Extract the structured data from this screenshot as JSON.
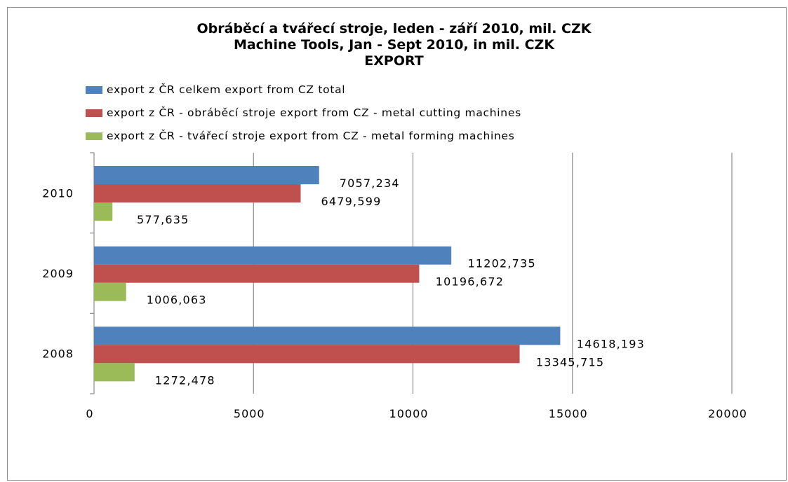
{
  "chart_data": {
    "type": "bar",
    "orientation": "horizontal",
    "title": [
      "Obráběcí a tvářecí stroje, leden - září 2010, mil. CZK",
      "Machine Tools, Jan - Sept 2010, in mil. CZK",
      "EXPORT"
    ],
    "categories": [
      "2010",
      "2009",
      "2008"
    ],
    "series": [
      {
        "name": "export z ČR celkem export from CZ total",
        "color": "#4f81bd",
        "values": [
          7057.234,
          11202.735,
          14618.193
        ],
        "labels": [
          "7057,234",
          "11202,735",
          "14618,193"
        ]
      },
      {
        "name": "export z ČR - obráběcí stroje export from CZ - metal cutting machines",
        "color": "#c0504d",
        "values": [
          6479.599,
          10196.672,
          13345.715
        ],
        "labels": [
          "6479,599",
          "10196,672",
          "13345,715"
        ]
      },
      {
        "name": "export z ČR - tvářecí stroje export from CZ - metal forming machines",
        "color": "#9bbb59",
        "values": [
          577.635,
          1006.063,
          1272.478
        ],
        "labels": [
          "577,635",
          "1006,063",
          "1272,478"
        ]
      }
    ],
    "x_ticks": [
      "0",
      "5000",
      "10000",
      "15000",
      "20000"
    ],
    "xlim": [
      0,
      20000
    ],
    "grid": "vertical",
    "legend_position": "top-left"
  }
}
